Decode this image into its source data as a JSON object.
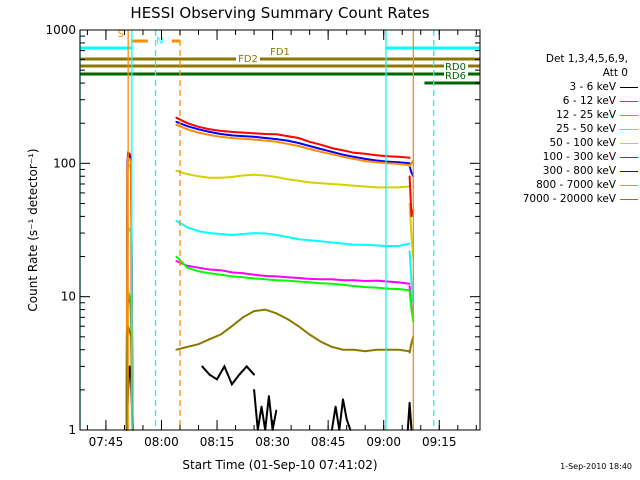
{
  "chart_data": {
    "type": "line",
    "title": "HESSI Observing Summary Count Rates",
    "xlabel": "Start Time (01-Sep-10 07:41:02)",
    "ylabel": "Count Rate (s⁻¹ detector⁻¹)",
    "yscale": "log",
    "ylim": [
      1,
      1000
    ],
    "xlim_minutes": [
      -7.0,
      101.0
    ],
    "x_ticks": [
      "07:45",
      "08:00",
      "08:15",
      "08:30",
      "08:45",
      "09:00",
      "09:15"
    ],
    "x_tick_minutes": [
      0,
      15,
      30,
      45,
      60,
      75,
      90
    ],
    "y_ticks": [
      "1",
      "10",
      "100",
      "1000"
    ],
    "legend_header": [
      "Det 1,3,4,5,6,9,",
      "Att 0"
    ],
    "timestamp": "1-Sep-2010 18:40",
    "series": [
      {
        "name": "3 - 6 keV",
        "color": "#000000",
        "segments": [
          {
            "x": [
              5.6,
              6.0,
              6.4,
              6.8,
              7.2
            ],
            "y": [
              1.0,
              2.0,
              3.0,
              2.5,
              1.0
            ]
          },
          {
            "x": [
              26,
              28,
              30,
              32,
              34,
              36,
              38,
              40
            ],
            "y": [
              3.0,
              2.6,
              2.4,
              3.0,
              2.2,
              2.6,
              3.0,
              2.6
            ]
          },
          {
            "x": [
              40,
              41,
              42,
              43,
              44,
              45,
              46
            ],
            "y": [
              2.0,
              1.0,
              1.5,
              1.0,
              1.8,
              1.0,
              1.4
            ]
          },
          {
            "x": [
              61,
              62,
              63,
              64,
              65,
              66
            ],
            "y": [
              1.0,
              1.5,
              1.0,
              1.7,
              1.2,
              1.0
            ]
          },
          {
            "x": [
              81.5,
              82.0,
              82.5
            ],
            "y": [
              1.0,
              1.6,
              1.0
            ]
          }
        ]
      },
      {
        "name": "6 - 12 keV",
        "color": "#ff00ff",
        "segments": [
          {
            "x": [
              5.6,
              5.8,
              6.0,
              6.3,
              6.6,
              6.9,
              7.2
            ],
            "y": [
              1.0,
              8.0,
              10.0,
              9.5,
              9.0,
              5.0,
              1.0
            ]
          },
          {
            "x": [
              19,
              22,
              25,
              28,
              31,
              34,
              37,
              40,
              43,
              46,
              49,
              52,
              55,
              58,
              61,
              64,
              67,
              70,
              73,
              76,
              79,
              82
            ],
            "y": [
              18.5,
              17.0,
              16.5,
              16.0,
              15.8,
              15.2,
              15.0,
              14.6,
              14.3,
              14.2,
              14.0,
              13.8,
              13.6,
              13.5,
              13.5,
              13.3,
              13.3,
              13.1,
              13.2,
              13.0,
              12.8,
              12.5
            ]
          },
          {
            "x": [
              82,
              82.5,
              83
            ],
            "y": [
              12.0,
              8.5,
              7.0
            ]
          }
        ]
      },
      {
        "name": "12 - 25 keV",
        "color": "#00ff00",
        "segments": [
          {
            "x": [
              5.6,
              5.8,
              6.0,
              6.4,
              6.8,
              7.2
            ],
            "y": [
              1.0,
              9.0,
              11.0,
              10.0,
              9.0,
              1.0
            ]
          },
          {
            "x": [
              19,
              22,
              25,
              28,
              31,
              34,
              37,
              40,
              43,
              46,
              49,
              52,
              55,
              58,
              61,
              64,
              67,
              70,
              73,
              76,
              79,
              82
            ],
            "y": [
              20.0,
              16.5,
              15.5,
              15.0,
              14.6,
              14.2,
              14.0,
              13.7,
              13.5,
              13.3,
              13.2,
              13.0,
              12.8,
              12.6,
              12.5,
              12.3,
              12.0,
              11.8,
              11.7,
              11.5,
              11.4,
              11.2
            ]
          },
          {
            "x": [
              82,
              82.5,
              83
            ],
            "y": [
              11.0,
              8.0,
              6.5
            ]
          }
        ]
      },
      {
        "name": "25 - 50 keV",
        "color": "#00ffff",
        "segments": [
          {
            "x": [
              5.6,
              5.8,
              6.0,
              6.4,
              6.8,
              7.2
            ],
            "y": [
              1.0,
              25.0,
              33.0,
              32.0,
              30.0,
              1.0
            ]
          },
          {
            "x": [
              19,
              22,
              25,
              28,
              31,
              34,
              37,
              40,
              43,
              46,
              49,
              52,
              55,
              58,
              61,
              64,
              67,
              70,
              73,
              76,
              79,
              82
            ],
            "y": [
              37.0,
              33.0,
              31.0,
              30.0,
              29.5,
              29.0,
              29.5,
              30.0,
              29.8,
              29.0,
              28.0,
              27.0,
              26.5,
              26.0,
              25.5,
              25.0,
              24.5,
              24.5,
              24.2,
              24.0,
              24.0,
              25.0
            ]
          },
          {
            "x": [
              82,
              82.5,
              83
            ],
            "y": [
              22.0,
              13.0,
              9.0
            ]
          }
        ]
      },
      {
        "name": "50 - 100 keV",
        "color": "#d2d200",
        "segments": [
          {
            "x": [
              5.6,
              5.8,
              6.0,
              6.4,
              6.8,
              7.2
            ],
            "y": [
              1.0,
              75.0,
              100.0,
              95.0,
              90.0,
              1.0
            ]
          },
          {
            "x": [
              19,
              22,
              25,
              28,
              31,
              34,
              37,
              40,
              43,
              46,
              49,
              52,
              55,
              58,
              61,
              64,
              67,
              70,
              73,
              76,
              79,
              82
            ],
            "y": [
              88.0,
              83.0,
              80.0,
              78.0,
              78.0,
              79.0,
              81.0,
              82.0,
              81.0,
              79.0,
              76.0,
              74.0,
              72.0,
              71.0,
              70.0,
              69.0,
              68.0,
              67.0,
              66.0,
              66.0,
              66.0,
              67.0
            ]
          },
          {
            "x": [
              82,
              82.5,
              83
            ],
            "y": [
              50.0,
              28.0,
              20.0
            ]
          }
        ]
      },
      {
        "name": "100 - 300 keV",
        "color": "#ff0000",
        "segments": [
          {
            "x": [
              5.6,
              5.8,
              6.0,
              6.4,
              6.8,
              7.2
            ],
            "y": [
              1.0,
              100.0,
              120.0,
              118.0,
              110.0,
              1.0
            ]
          },
          {
            "x": [
              19,
              22,
              25,
              28,
              31,
              34,
              37,
              40,
              43,
              46,
              49,
              52,
              55,
              58,
              61,
              64,
              67,
              70,
              73,
              76,
              79,
              82
            ],
            "y": [
              220.0,
              200.0,
              188.0,
              180.0,
              175.0,
              172.0,
              170.0,
              168.0,
              166.0,
              165.0,
              160.0,
              155.0,
              145.0,
              138.0,
              130.0,
              125.0,
              120.0,
              118.0,
              115.0,
              113.0,
              112.0,
              110.0
            ]
          },
          {
            "x": [
              82,
              82.5,
              83
            ],
            "y": [
              80.0,
              40.0,
              45.0
            ]
          }
        ]
      },
      {
        "name": "300 - 800 keV",
        "color": "#0000ff",
        "segments": [
          {
            "x": [
              5.6,
              5.8,
              6.0,
              6.4,
              6.8,
              7.2
            ],
            "y": [
              1.0,
              95.0,
              115.0,
              112.0,
              105.0,
              1.0
            ]
          },
          {
            "x": [
              19,
              22,
              25,
              28,
              31,
              34,
              37,
              40,
              43,
              46,
              49,
              52,
              55,
              58,
              61,
              64,
              67,
              70,
              73,
              76,
              79,
              82
            ],
            "y": [
              205.0,
              190.0,
              180.0,
              172.0,
              166.0,
              162.0,
              160.0,
              158.0,
              155.0,
              152.0,
              148.0,
              142.0,
              135.0,
              128.0,
              122.0,
              116.0,
              112.0,
              108.0,
              105.0,
              103.0,
              102.0,
              100.0
            ]
          },
          {
            "x": [
              82,
              82.5,
              83
            ],
            "y": [
              95.0,
              85.0,
              80.0
            ]
          }
        ]
      },
      {
        "name": "800 - 7000 keV",
        "color": "#ff8c00",
        "segments": [
          {
            "x": [
              5.6,
              5.8,
              6.0,
              6.4,
              6.8,
              7.2
            ],
            "y": [
              1.0,
              90.0,
              110.0,
              108.0,
              102.0,
              1.0
            ]
          },
          {
            "x": [
              19,
              22,
              25,
              28,
              31,
              34,
              37,
              40,
              43,
              46,
              49,
              52,
              55,
              58,
              61,
              64,
              67,
              70,
              73,
              76,
              79,
              82
            ],
            "y": [
              195.0,
              180.0,
              170.0,
              163.0,
              158.0,
              155.0,
              153.0,
              151.0,
              148.0,
              145.0,
              140.0,
              135.0,
              128.0,
              122.0,
              117.0,
              112.0,
              108.0,
              104.0,
              102.0,
              100.0,
              99.0,
              97.0
            ]
          },
          {
            "x": [
              82,
              82.5,
              83
            ],
            "y": [
              95.0,
              100.0,
              105.0
            ]
          }
        ]
      },
      {
        "name": "7000 - 20000 keV",
        "color": "#8c7800",
        "segments": [
          {
            "x": [
              5.6,
              5.8,
              6.0,
              6.4,
              6.8,
              7.2
            ],
            "y": [
              1.0,
              5.0,
              6.0,
              5.5,
              5.0,
              1.0
            ]
          },
          {
            "x": [
              19,
              22,
              25,
              28,
              31,
              34,
              37,
              40,
              43,
              46,
              49,
              52,
              55,
              58,
              61,
              64,
              67,
              70,
              73,
              76,
              79,
              82
            ],
            "y": [
              4.0,
              4.2,
              4.4,
              4.8,
              5.2,
              6.0,
              7.0,
              7.8,
              8.0,
              7.5,
              6.8,
              6.0,
              5.2,
              4.6,
              4.2,
              4.0,
              4.0,
              3.9,
              4.0,
              4.0,
              4.0,
              3.9
            ]
          },
          {
            "x": [
              82,
              82.5,
              83
            ],
            "y": [
              3.8,
              4.5,
              5.0
            ]
          }
        ]
      }
    ],
    "vertical_markers": [
      {
        "x": -7.0,
        "color": "#00ffff",
        "style": "solid"
      },
      {
        "x": 6.0,
        "color": "#ff8c00",
        "style": "solid"
      },
      {
        "x": 7.0,
        "color": "#00ffff",
        "style": "solid"
      },
      {
        "x": 13.4,
        "color": "#00ffff",
        "style": "dashed"
      },
      {
        "x": 20.0,
        "color": "#ff8c00",
        "style": "dashed"
      },
      {
        "x": 75.6,
        "color": "#00ffff",
        "style": "solid"
      },
      {
        "x": 83.0,
        "color": "#ff8c00",
        "style": "solid"
      },
      {
        "x": 88.5,
        "color": "#00ffff",
        "style": "dashed"
      }
    ],
    "flag_bars": [
      {
        "label": "S",
        "color": "#ff8c00",
        "start": 7.0,
        "end": 20.0,
        "y": 0.0,
        "label_pos": "left"
      },
      {
        "label": "N",
        "color": "#00ffff",
        "start": -7.0,
        "end": 7.0,
        "y": 1.0,
        "label_pos": "left-of-end",
        "extra": [
          [
            75.6,
            101.0
          ]
        ]
      },
      {
        "label": "FD1",
        "color": "#8c7800",
        "start": -7.0,
        "end": 101.0,
        "y": 2.0,
        "label_pos": "mid"
      },
      {
        "label": "FD2",
        "color": "#8c7800",
        "start": -7.0,
        "end": 101.0,
        "y": 3.0,
        "label_pos": "mid"
      },
      {
        "label": "RD0",
        "color": "#006400",
        "start": -7.0,
        "end": 101.0,
        "y": 4.0,
        "label_pos": "right"
      },
      {
        "label": "RD6",
        "color": "#006400",
        "start": 86.0,
        "end": 101.0,
        "y": 5.0,
        "label_pos": "right"
      }
    ]
  }
}
